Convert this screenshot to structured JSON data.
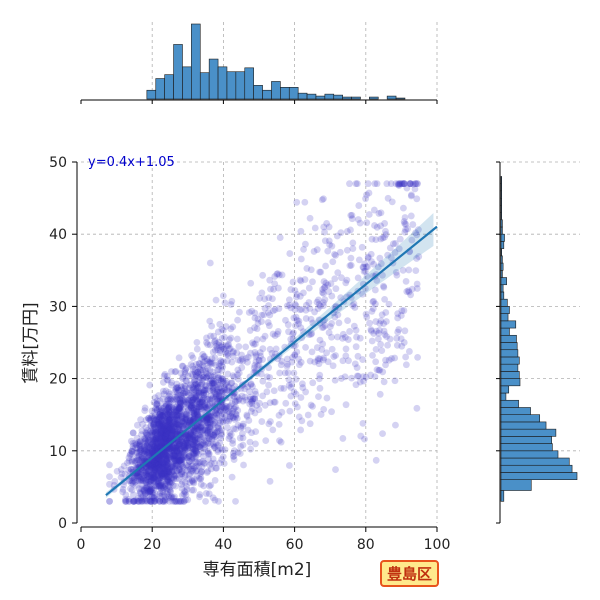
{
  "chart_data": {
    "type": "scatter",
    "title": "",
    "xlabel": "専有面積[m2]",
    "ylabel": "賃料[万円]",
    "xlim": [
      0,
      100
    ],
    "ylim": [
      0,
      50
    ],
    "xticks": [
      0,
      20,
      40,
      60,
      80,
      100
    ],
    "yticks": [
      0,
      10,
      20,
      30,
      40,
      50
    ],
    "grid": true,
    "regression": {
      "equation_label": "y=0.4x+1.05",
      "slope": 0.4,
      "intercept": 1.05,
      "x_range": [
        7,
        100
      ],
      "color": "#1f77b4"
    },
    "scatter_color": "#3b33c4",
    "approx_point_count": 3000,
    "top_histogram": {
      "bin_edges": [
        0,
        3,
        6,
        9,
        12,
        15,
        18,
        21,
        24,
        27,
        30,
        33,
        36,
        39,
        42,
        45,
        48,
        51,
        54,
        57,
        60,
        63,
        66,
        69,
        72,
        75,
        78,
        81,
        84,
        87,
        90,
        93,
        96,
        99
      ],
      "counts": [
        0,
        0,
        0,
        0,
        9,
        21,
        25,
        56,
        33,
        77,
        27,
        41,
        33,
        28,
        28,
        32,
        14,
        9,
        18,
        12,
        12,
        6,
        5,
        3,
        5,
        4,
        2,
        2,
        0,
        2,
        0,
        3,
        1
      ],
      "note": "counts cover bins from 9 m2 to 99 m2, step 2.5 approx (relative heights)"
    },
    "right_histogram": {
      "bin_edges_y": [
        3.0,
        4.5,
        6.0,
        7.0,
        8.0,
        9.0,
        10.0,
        11.0,
        12.0,
        13.0,
        14.0,
        15.0,
        16.0,
        17.0,
        18.0,
        19.0,
        20.0,
        21.0,
        22.0,
        23.0,
        24.0,
        25.0,
        26.0,
        27.0,
        28.0,
        29.0,
        30.0,
        31.0,
        32.0,
        33.0,
        34.0,
        35.0,
        36.0,
        37.0,
        38.0,
        39.0,
        40.0,
        41.0,
        42.0,
        43.0,
        44.0,
        45.0,
        46.0,
        47.0,
        48.0
      ],
      "counts": [
        4,
        43,
        108,
        101,
        97,
        81,
        73,
        72,
        78,
        64,
        55,
        42,
        25,
        7,
        11,
        27,
        26,
        24,
        26,
        24,
        23,
        22,
        12,
        21,
        10,
        12,
        9,
        4,
        3,
        8,
        2,
        3,
        2,
        1,
        4,
        5,
        2,
        2,
        1,
        1,
        1,
        1,
        1,
        1
      ]
    }
  },
  "badge": {
    "label": "豊島区"
  }
}
